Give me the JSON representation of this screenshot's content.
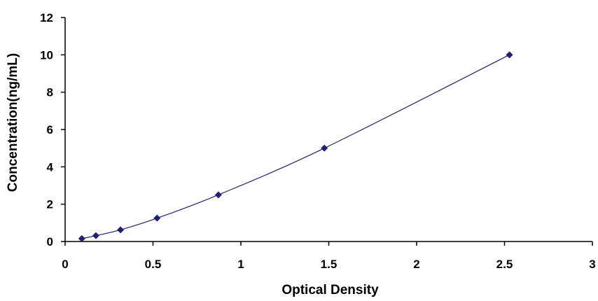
{
  "chart_data": {
    "type": "scatter",
    "title": "",
    "xlabel": "Optical Density",
    "ylabel": "Concentration(ng/mL)",
    "xlim": [
      0,
      3
    ],
    "ylim": [
      0,
      12
    ],
    "x_ticks": [
      "0",
      "0.5",
      "1",
      "1.5",
      "2",
      "2.5",
      "3"
    ],
    "y_ticks": [
      "0",
      "2",
      "4",
      "6",
      "8",
      "10",
      "12"
    ],
    "grid": false,
    "legend": "none",
    "marker_color": "#1f1f7a",
    "line_color": "#1f1f7a",
    "fit_line": "smooth curve through points",
    "series": [
      {
        "x": [
          0.095,
          0.175,
          0.315,
          0.523,
          0.872,
          1.475,
          2.528
        ],
        "y": [
          0.156,
          0.313,
          0.625,
          1.25,
          2.5,
          5,
          10
        ]
      }
    ]
  }
}
